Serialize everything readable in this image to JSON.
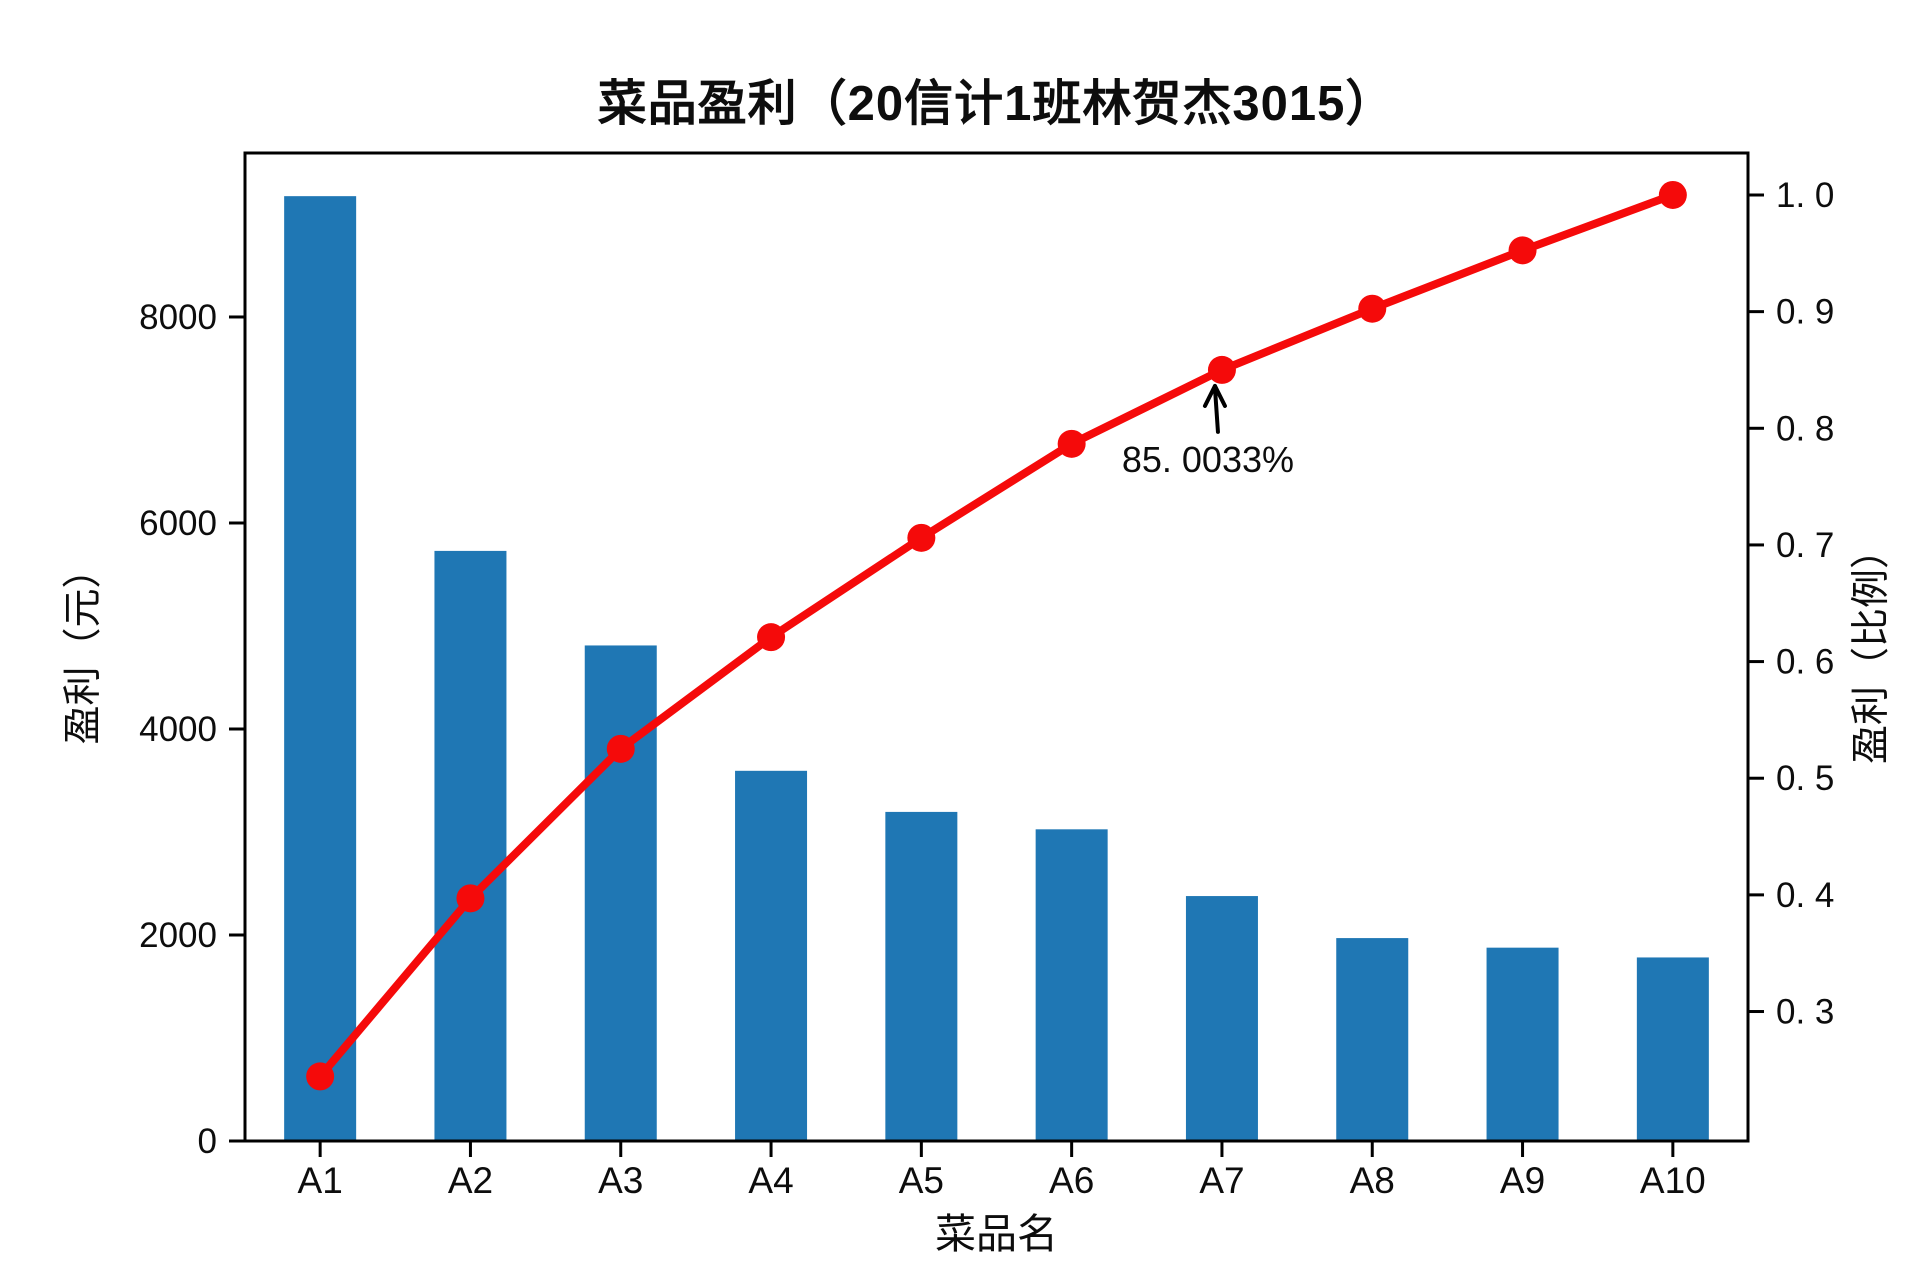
{
  "figure": {
    "background": "#ffffff",
    "text_color": "#0d0d0d",
    "axis_color": "#000000"
  },
  "chart_data": {
    "type": "bar",
    "subtype": "pareto-bar-with-cumulative-line",
    "title": "菜品盈利（20信计1班林贺杰3015）",
    "xlabel": "菜品名",
    "ylabel_left": "盈利（元）",
    "ylabel_right": "盈利（比例）",
    "categories": [
      "A1",
      "A2",
      "A3",
      "A4",
      "A5",
      "A6",
      "A7",
      "A8",
      "A9",
      "A10"
    ],
    "series": [
      {
        "name": "盈利（元）",
        "type": "bar",
        "axis": "left",
        "color": "#1f77b4",
        "values": [
          9173,
          5729,
          4811,
          3594,
          3195,
          3026,
          2378,
          1970,
          1877,
          1782
        ]
      },
      {
        "name": "盈利（比例）",
        "type": "line",
        "axis": "right",
        "color": "#f50a0a",
        "values": [
          0.244385,
          0.397016,
          0.52519,
          0.620941,
          0.706061,
          0.786679,
          0.850033,
          0.902517,
          0.952524,
          1.0
        ]
      }
    ],
    "ylim_left": [
      0,
      9592
    ],
    "ylim_right": [
      0.189,
      1.036
    ],
    "yticks_left": [
      0,
      2000,
      4000,
      6000,
      8000
    ],
    "ytick_labels_left": [
      "0",
      "2000",
      "4000",
      "6000",
      "8000"
    ],
    "yticks_right": [
      0.3,
      0.4,
      0.5,
      0.6,
      0.7,
      0.8,
      0.9,
      1.0
    ],
    "ytick_labels_right": [
      "0. 3",
      "0. 4",
      "0. 5",
      "0. 6",
      "0. 7",
      "0. 8",
      "0. 9",
      "1. 0"
    ],
    "annotation": {
      "text": "85. 0033%",
      "target_category": "A7",
      "target_value": 0.850033
    },
    "grid": false,
    "legend_position": "none"
  }
}
